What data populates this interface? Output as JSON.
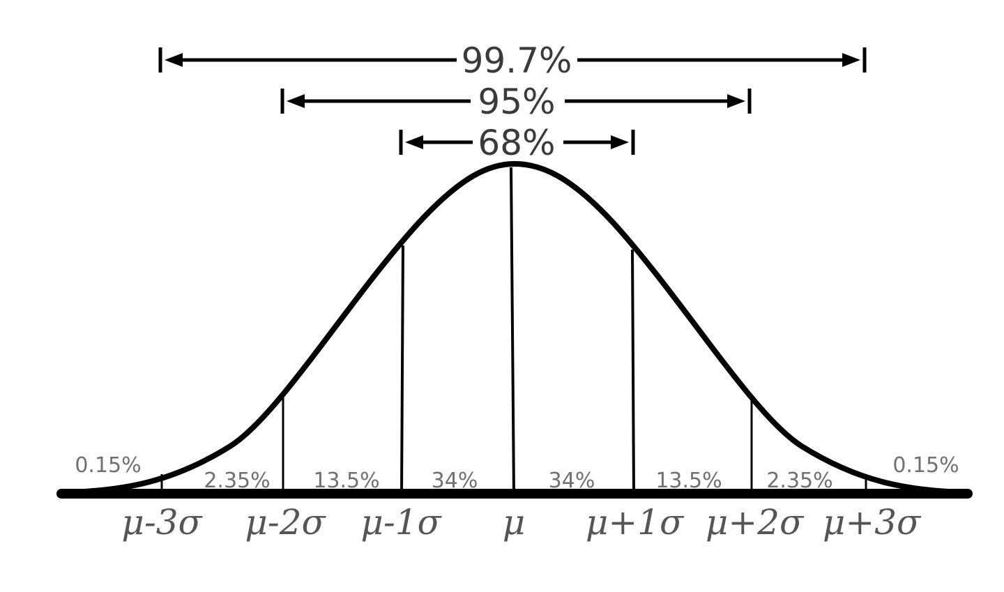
{
  "ranges": [
    {
      "label": "99.7%",
      "from_sigma": -3,
      "to_sigma": 3
    },
    {
      "label": "95%",
      "from_sigma": -2,
      "to_sigma": 2
    },
    {
      "label": "68%",
      "from_sigma": -1,
      "to_sigma": 1
    }
  ],
  "x_ticks": [
    "μ-3σ",
    "μ-2σ",
    "μ-1σ",
    "μ",
    "μ+1σ",
    "μ+2σ",
    "μ+3σ"
  ],
  "regions": [
    {
      "label": "0.15%",
      "from_sigma": null,
      "to_sigma": -3
    },
    {
      "label": "2.35%",
      "from_sigma": -3,
      "to_sigma": -2
    },
    {
      "label": "13.5%",
      "from_sigma": -2,
      "to_sigma": -1
    },
    {
      "label": "34%",
      "from_sigma": -1,
      "to_sigma": 0
    },
    {
      "label": "34%",
      "from_sigma": 0,
      "to_sigma": 1
    },
    {
      "label": "13.5%",
      "from_sigma": 1,
      "to_sigma": 2
    },
    {
      "label": "2.35%",
      "from_sigma": 2,
      "to_sigma": 3
    },
    {
      "label": "0.15%",
      "from_sigma": 3,
      "to_sigma": null
    }
  ],
  "colors": {
    "curve": "#000000",
    "range_text": "#3a3a3a",
    "percent_text": "#707070",
    "tick_text": "#555555"
  }
}
